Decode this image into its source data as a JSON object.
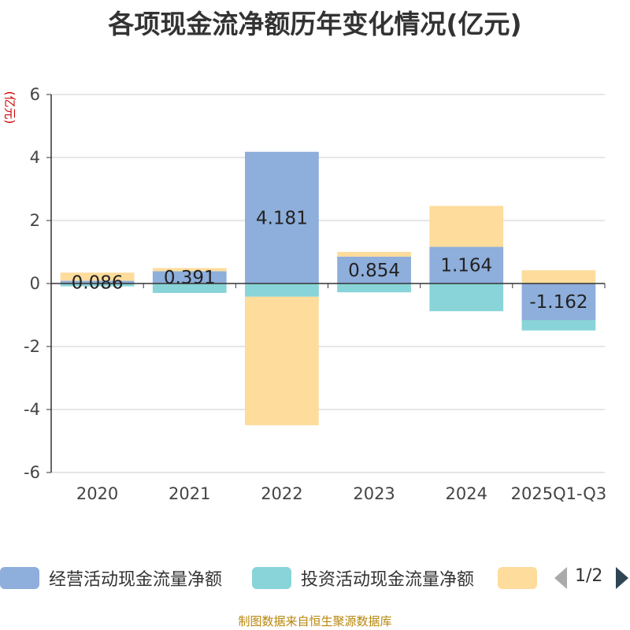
{
  "title": "各项现金流净额历年变化情况(亿元)",
  "unit": "(亿元)",
  "source": "制图数据来自恒生聚源数据库",
  "legend": {
    "items": [
      {
        "label": "经营活动现金流量净额",
        "color": "#8eaedb"
      },
      {
        "label": "投资活动现金流量净额",
        "color": "#88d4d8"
      },
      {
        "label": "",
        "color": "#fddc9c"
      }
    ],
    "page": "1/2"
  },
  "chart_data": {
    "type": "bar",
    "stacked": true,
    "categories": [
      "2020",
      "2021",
      "2022",
      "2023",
      "2024",
      "2025Q1-Q3"
    ],
    "ylim": [
      -6,
      6
    ],
    "yticks": [
      -6,
      -4,
      -2,
      0,
      2,
      4,
      6
    ],
    "grid": true,
    "legend_position": "bottom",
    "series": [
      {
        "name": "经营活动现金流量净额",
        "color": "#8eaedb",
        "values": [
          0.086,
          0.391,
          4.181,
          0.854,
          1.164,
          -1.162
        ],
        "labels": [
          "0.086",
          "0.391",
          "4.181",
          "0.854",
          "1.164",
          "-1.162"
        ]
      },
      {
        "name": "投资活动现金流量净额",
        "color": "#88d4d8",
        "values": [
          -0.09,
          -0.3,
          -0.42,
          -0.28,
          -0.88,
          -0.33
        ]
      },
      {
        "name": "",
        "color": "#fddc9c",
        "values": [
          0.26,
          0.1,
          -4.08,
          0.15,
          1.3,
          0.42
        ]
      }
    ]
  }
}
